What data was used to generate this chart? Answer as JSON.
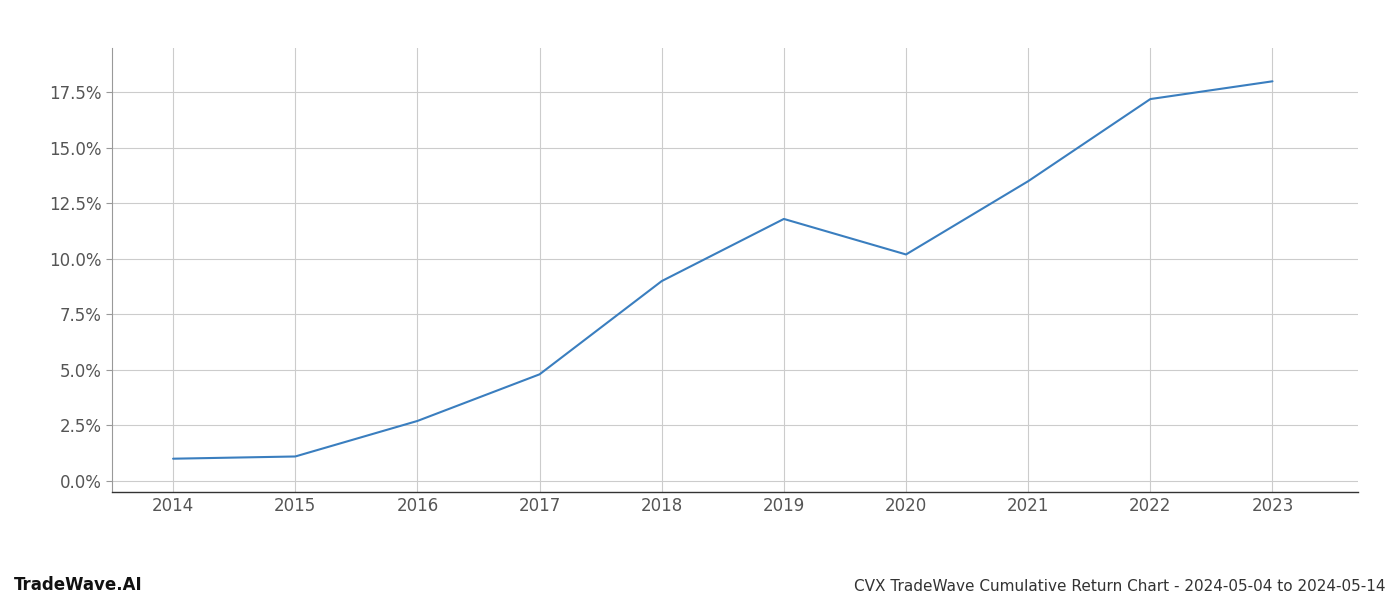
{
  "x": [
    2014,
    2015,
    2016,
    2017,
    2018,
    2019,
    2020,
    2021,
    2022,
    2023
  ],
  "y": [
    1.0,
    1.1,
    2.7,
    4.8,
    9.0,
    11.8,
    10.2,
    13.5,
    17.2,
    18.0
  ],
  "line_color": "#3a7ebf",
  "line_width": 1.5,
  "background_color": "#ffffff",
  "grid_color": "#cccccc",
  "title": "CVX TradeWave Cumulative Return Chart - 2024-05-04 to 2024-05-14",
  "watermark": "TradeWave.AI",
  "ylim": [
    -0.5,
    19.5
  ],
  "xlim": [
    2013.5,
    2023.7
  ],
  "yticks": [
    0.0,
    2.5,
    5.0,
    7.5,
    10.0,
    12.5,
    15.0,
    17.5
  ],
  "xticks": [
    2014,
    2015,
    2016,
    2017,
    2018,
    2019,
    2020,
    2021,
    2022,
    2023
  ],
  "tick_label_color": "#555555",
  "title_color": "#333333",
  "watermark_color": "#111111",
  "title_fontsize": 11,
  "watermark_fontsize": 12,
  "tick_fontsize": 12
}
